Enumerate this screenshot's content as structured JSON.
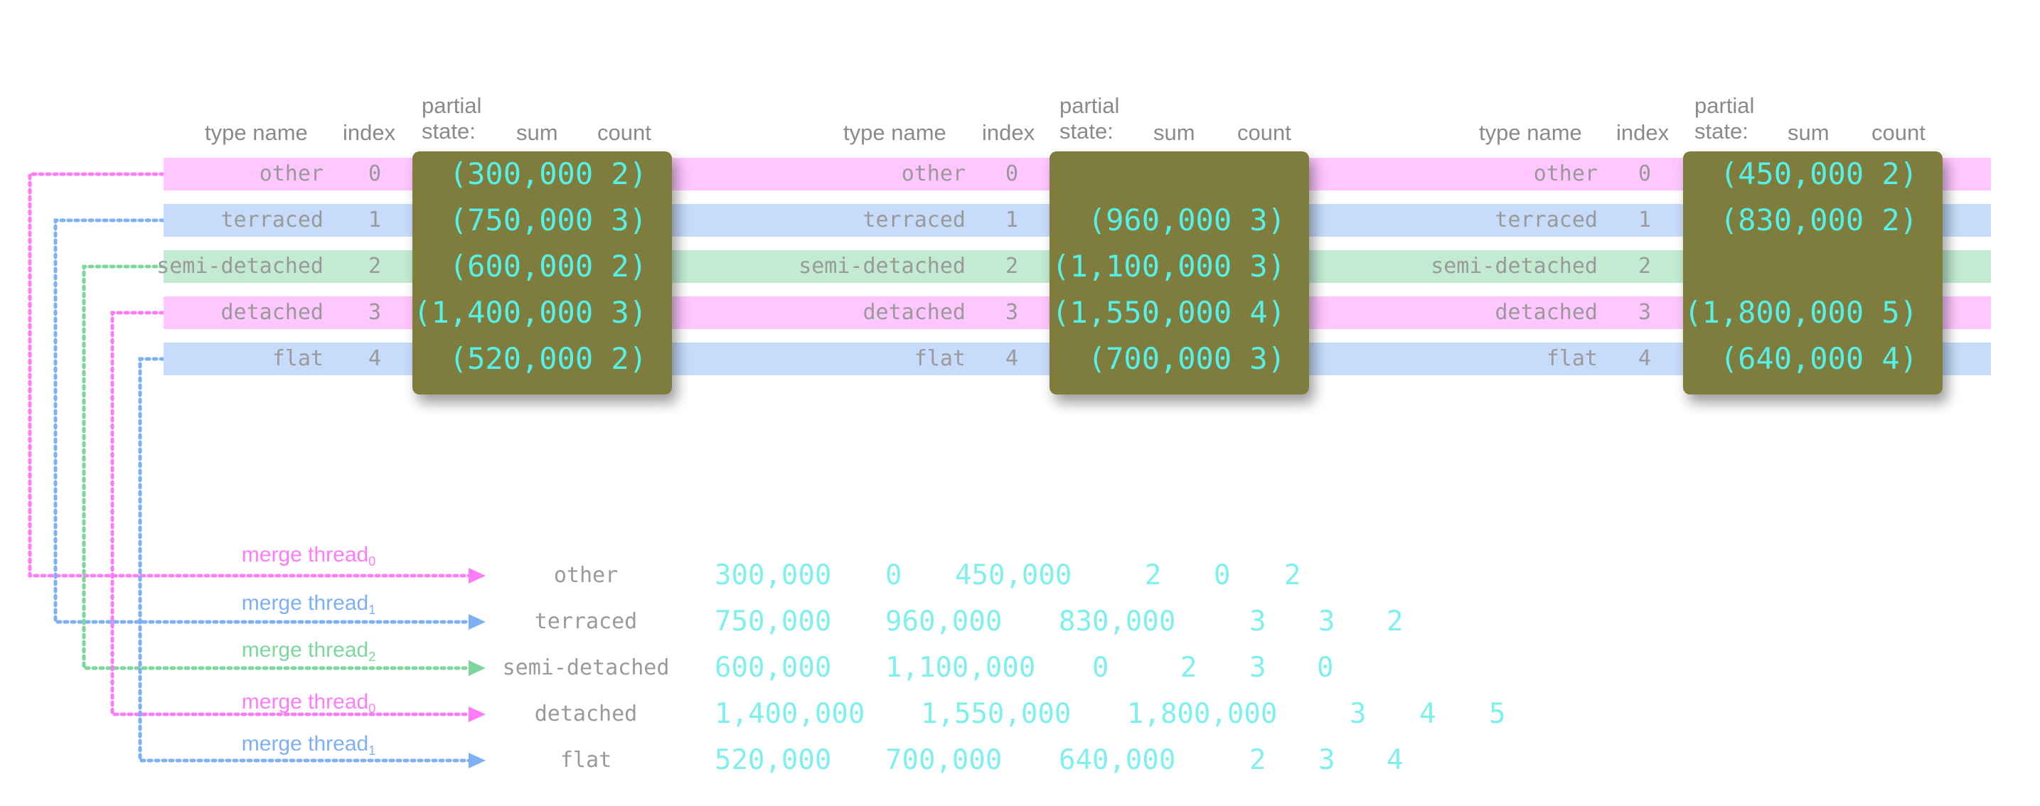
{
  "headers": {
    "type_name": "type name",
    "index": "index",
    "partial_line1": "partial",
    "partial_line2": "state:",
    "sum": "sum",
    "count": "count"
  },
  "types": [
    {
      "name": "other",
      "index": "0",
      "color": "#ffc6ff",
      "thread": "merge thread",
      "thread_sub": "0",
      "thread_color": "#ff7cf8"
    },
    {
      "name": "terraced",
      "index": "1",
      "color": "#c6dcfa",
      "thread": "merge thread",
      "thread_sub": "1",
      "thread_color": "#7eb0f4"
    },
    {
      "name": "semi-detached",
      "index": "2",
      "color": "#c3ebd2",
      "thread": "merge thread",
      "thread_sub": "2",
      "thread_color": "#7dd79d"
    },
    {
      "name": "detached",
      "index": "3",
      "color": "#ffc6ff",
      "thread": "merge thread",
      "thread_sub": "0",
      "thread_color": "#ff7cf8"
    },
    {
      "name": "flat",
      "index": "4",
      "color": "#c6dcfa",
      "thread": "merge thread",
      "thread_sub": "1",
      "thread_color": "#7eb0f4"
    }
  ],
  "partitions": [
    {
      "pairs": [
        "(300,000 2)",
        "(750,000 3)",
        "(600,000 2)",
        "(1,400,000 3)",
        "(520,000 2)"
      ]
    },
    {
      "pairs": [
        "",
        "(960,000 3)",
        "(1,100,000 3)",
        "(1,550,000 4)",
        "(700,000 3)"
      ]
    },
    {
      "pairs": [
        "(450,000 2)",
        "(830,000 2)",
        "",
        "(1,800,000 5)",
        "(640,000 4)"
      ]
    }
  ],
  "merged": [
    {
      "sums": [
        "300,000",
        "0",
        "450,000"
      ],
      "counts": [
        "2",
        "0",
        "2"
      ]
    },
    {
      "sums": [
        "750,000",
        "960,000",
        "830,000"
      ],
      "counts": [
        "3",
        "3",
        "2"
      ]
    },
    {
      "sums": [
        "600,000",
        "1,100,000",
        "0"
      ],
      "counts": [
        "2",
        "3",
        "0"
      ]
    },
    {
      "sums": [
        "1,400,000",
        "1,550,000",
        "1,800,000"
      ],
      "counts": [
        "3",
        "4",
        "5"
      ]
    },
    {
      "sums": [
        "520,000",
        "700,000",
        "640,000"
      ],
      "counts": [
        "2",
        "3",
        "4"
      ]
    }
  ],
  "colors": {
    "state_box": "#7e7d3d",
    "state_text": "#56f0e6",
    "result_text": "#7ff0ec",
    "header_text": "#8a8a8a",
    "label_text": "#9a9a9a"
  }
}
